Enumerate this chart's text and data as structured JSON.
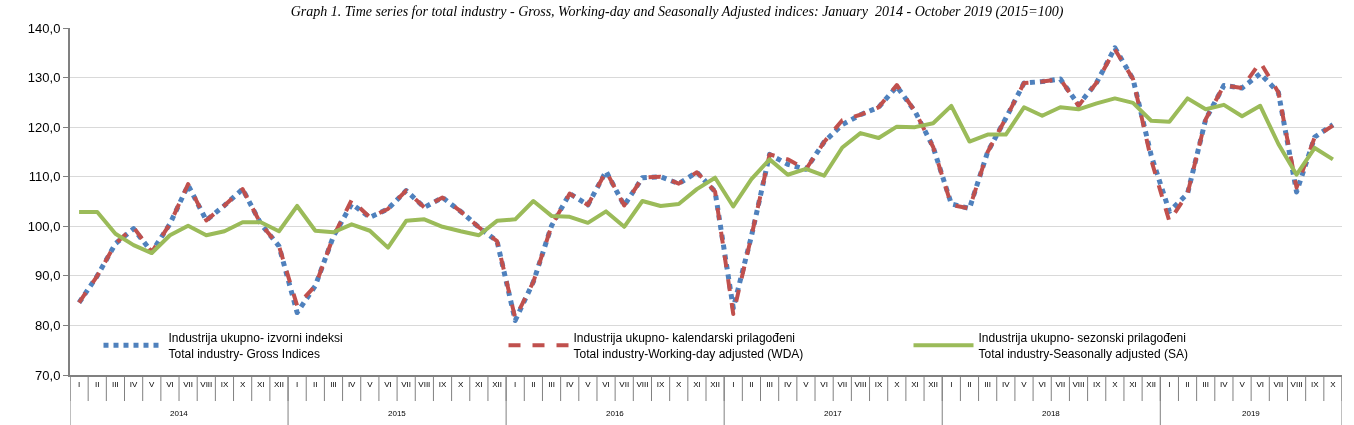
{
  "chart_data": {
    "type": "line",
    "title": "Graph 1. Time series for total industry - Gross, Working-day and Seasonally Adjusted indices: January  2014 - October 2019 (2015=100)",
    "categories": [
      "I",
      "II",
      "III",
      "IV",
      "V",
      "VI",
      "VII",
      "VIII",
      "IX",
      "X",
      "XI",
      "XII",
      "I",
      "II",
      "III",
      "IV",
      "V",
      "VI",
      "VII",
      "VIII",
      "IX",
      "X",
      "XI",
      "XII",
      "I",
      "II",
      "III",
      "IV",
      "V",
      "VI",
      "VII",
      "VIII",
      "IX",
      "X",
      "XI",
      "XII",
      "I",
      "II",
      "III",
      "IV",
      "V",
      "VI",
      "VII",
      "VIII",
      "IX",
      "X",
      "XI",
      "XII",
      "I",
      "II",
      "III",
      "IV",
      "V",
      "VI",
      "VII",
      "VIII",
      "IX",
      "X",
      "XI",
      "XII",
      "I",
      "II",
      "III",
      "IV",
      "V",
      "VI",
      "VII",
      "VIII",
      "IX",
      "X"
    ],
    "annotations": [
      "2014",
      "2015",
      "2016",
      "2017",
      "2018",
      "2019"
    ],
    "series": [
      {
        "name": "Industrija ukupno- izvorni indeksi\nTotal industry- Gross Indices",
        "color": "#4f81bd",
        "line_style": "dotted",
        "values": [
          84.6,
          90.0,
          96.5,
          99.5,
          94.8,
          100.5,
          108.3,
          101.2,
          104.2,
          107.5,
          100.5,
          96.0,
          82.6,
          88.0,
          98.0,
          104.5,
          101.8,
          103.5,
          107.2,
          103.8,
          105.8,
          103.0,
          99.8,
          97.0,
          81.0,
          88.8,
          100.1,
          106.6,
          104.3,
          111.1,
          104.2,
          109.8,
          110.0,
          108.6,
          110.9,
          107.0,
          83.5,
          98.0,
          114.5,
          112.5,
          111.5,
          117.0,
          120.5,
          122.5,
          124.0,
          128.2,
          123.2,
          116.0,
          104.5,
          103.6,
          115.0,
          121.8,
          128.9,
          129.2,
          129.7,
          124.5,
          129.0,
          136.0,
          129.7,
          114.3,
          103.0,
          106.6,
          121.6,
          128.4,
          127.9,
          130.8,
          127.0,
          106.9,
          118.0,
          120.5
        ]
      },
      {
        "name": "Industrija ukupno- kalendarski prilagođeni\nTotal industry-Working-day adjusted (WDA)",
        "color": "#c0504d",
        "line_style": "dashed",
        "values": [
          84.6,
          90.0,
          96.5,
          99.8,
          94.8,
          100.5,
          108.5,
          101.2,
          104.2,
          107.5,
          100.5,
          96.0,
          84.0,
          88.0,
          98.0,
          105.3,
          101.8,
          103.5,
          107.2,
          103.8,
          105.8,
          103.0,
          99.8,
          97.0,
          81.5,
          88.8,
          100.1,
          106.6,
          104.3,
          111.1,
          104.2,
          109.8,
          110.0,
          108.6,
          110.9,
          107.0,
          82.3,
          98.0,
          114.5,
          113.5,
          111.5,
          117.0,
          121.4,
          122.5,
          124.0,
          128.5,
          123.2,
          116.0,
          104.3,
          103.6,
          115.0,
          121.8,
          128.9,
          129.2,
          129.7,
          124.3,
          129.0,
          135.7,
          129.7,
          113.4,
          101.0,
          106.6,
          121.6,
          128.4,
          127.9,
          133.1,
          127.0,
          107.8,
          118.0,
          120.3
        ]
      },
      {
        "name": "Industrija ukupno- sezonski prilagođeni\nTotal industry-Seasonally adjusted (SA)",
        "color": "#9bbb59",
        "line_style": "solid",
        "values": [
          102.9,
          102.9,
          98.5,
          96.2,
          94.6,
          98.2,
          100.1,
          98.2,
          99.0,
          100.8,
          100.8,
          99.0,
          104.1,
          99.1,
          98.8,
          100.4,
          99.1,
          95.7,
          101.1,
          101.4,
          99.9,
          99.0,
          98.2,
          101.1,
          101.4,
          105.1,
          102.1,
          101.9,
          100.7,
          103.0,
          99.9,
          105.1,
          104.1,
          104.5,
          107.5,
          109.8,
          104.0,
          109.5,
          113.5,
          110.4,
          111.6,
          110.2,
          115.9,
          118.8,
          117.8,
          120.1,
          120.0,
          120.8,
          124.3,
          117.1,
          118.5,
          118.5,
          124.0,
          122.3,
          124.0,
          123.6,
          124.8,
          125.8,
          124.9,
          121.3,
          121.1,
          125.8,
          123.6,
          124.5,
          122.2,
          124.3,
          116.6,
          110.4,
          115.8,
          113.5
        ]
      }
    ],
    "ylim": [
      70,
      140
    ],
    "yticks": [
      {
        "value": 70,
        "label": "70,0"
      },
      {
        "value": 80,
        "label": "80,0"
      },
      {
        "value": 90,
        "label": "90,0"
      },
      {
        "value": 100,
        "label": "100,0"
      },
      {
        "value": 110,
        "label": "110,0"
      },
      {
        "value": 120,
        "label": "120,0"
      },
      {
        "value": 130,
        "label": "130,0"
      },
      {
        "value": 140,
        "label": "140,0"
      }
    ],
    "grid": "y",
    "legend": "bottom"
  }
}
